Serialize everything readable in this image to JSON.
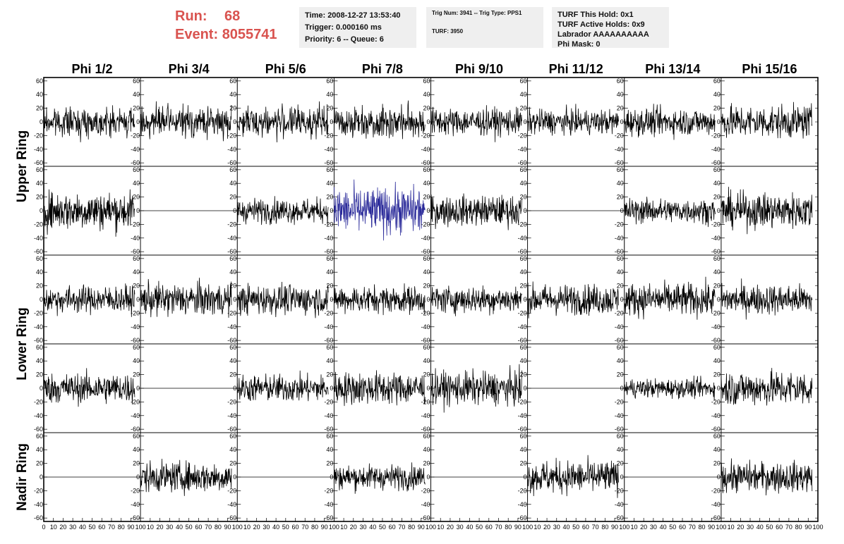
{
  "header": {
    "run_label": "Run:",
    "run_value": "68",
    "event_label": "Event:",
    "event_value": "8055741"
  },
  "info_time": {
    "time": "Time: 2008-12-27 13:53:40",
    "trigger": "Trigger: 0.000160 ms",
    "priority": "Priority: 6 -- Queue: 6"
  },
  "info_trig": {
    "trig": "Trig Num: 3941 -- Trig Type: PPS1",
    "turf": "TURF: 3950"
  },
  "info_turf": {
    "this_hold": "TURF This Hold: 0x1",
    "active_holds": "TURF Active Holds: 0x9",
    "labrador": "Labrador AAAAAAAAAA",
    "phi_mask": "Phi Mask: 0"
  },
  "colors": {
    "trace": "#000000",
    "highlight_trace": "#2b2b9a",
    "frame": "#000000",
    "run_text": "#d9534f",
    "info_bg": "#efefef"
  },
  "chart_data": {
    "type": "line",
    "columns": [
      "Phi 1/2",
      "Phi 3/4",
      "Phi 5/6",
      "Phi 7/8",
      "Phi 9/10",
      "Phi 11/12",
      "Phi 13/14",
      "Phi 15/16"
    ],
    "ring_labels": [
      "Upper Ring",
      "Lower Ring",
      "Nadir Ring"
    ],
    "ylim": [
      -65,
      65
    ],
    "yticks": [
      -60,
      -40,
      -20,
      0,
      20,
      40,
      60
    ],
    "xlim": [
      0,
      100
    ],
    "xticks": [
      0,
      10,
      20,
      30,
      40,
      50,
      60,
      70,
      80,
      90,
      100
    ],
    "samples_per_trace": 256,
    "x_trace_range": [
      0,
      94
    ],
    "rows": [
      {
        "ring": "Upper Ring",
        "panels": [
          {
            "column": "Phi 1/2",
            "active": true,
            "amplitude": 10
          },
          {
            "column": "Phi 3/4",
            "active": true,
            "amplitude": 11
          },
          {
            "column": "Phi 5/6",
            "active": true,
            "amplitude": 11
          },
          {
            "column": "Phi 7/8",
            "active": true,
            "amplitude": 12
          },
          {
            "column": "Phi 9/10",
            "active": true,
            "amplitude": 10
          },
          {
            "column": "Phi 11/12",
            "active": true,
            "amplitude": 9
          },
          {
            "column": "Phi 13/14",
            "active": true,
            "amplitude": 10
          },
          {
            "column": "Phi 15/16",
            "active": true,
            "amplitude": 12
          }
        ]
      },
      {
        "ring": "Upper Ring",
        "panels": [
          {
            "column": "Phi 1/2",
            "active": true,
            "amplitude": 14
          },
          {
            "column": "Phi 3/4",
            "active": false,
            "amplitude": 0
          },
          {
            "column": "Phi 5/6",
            "active": true,
            "amplitude": 9
          },
          {
            "column": "Phi 7/8",
            "active": true,
            "amplitude": 17,
            "highlight": true
          },
          {
            "column": "Phi 9/10",
            "active": true,
            "amplitude": 11
          },
          {
            "column": "Phi 11/12",
            "active": false,
            "amplitude": 0
          },
          {
            "column": "Phi 13/14",
            "active": true,
            "amplitude": 9
          },
          {
            "column": "Phi 15/16",
            "active": true,
            "amplitude": 13
          }
        ]
      },
      {
        "ring": "Lower Ring",
        "panels": [
          {
            "column": "Phi 1/2",
            "active": true,
            "amplitude": 10
          },
          {
            "column": "Phi 3/4",
            "active": true,
            "amplitude": 12
          },
          {
            "column": "Phi 5/6",
            "active": true,
            "amplitude": 11
          },
          {
            "column": "Phi 7/8",
            "active": true,
            "amplitude": 10
          },
          {
            "column": "Phi 9/10",
            "active": true,
            "amplitude": 10
          },
          {
            "column": "Phi 11/12",
            "active": true,
            "amplitude": 11
          },
          {
            "column": "Phi 13/14",
            "active": true,
            "amplitude": 12
          },
          {
            "column": "Phi 15/16",
            "active": true,
            "amplitude": 11
          }
        ]
      },
      {
        "ring": "Lower Ring",
        "panels": [
          {
            "column": "Phi 1/2",
            "active": true,
            "amplitude": 11
          },
          {
            "column": "Phi 3/4",
            "active": false,
            "amplitude": 0
          },
          {
            "column": "Phi 5/6",
            "active": true,
            "amplitude": 10
          },
          {
            "column": "Phi 7/8",
            "active": true,
            "amplitude": 12
          },
          {
            "column": "Phi 9/10",
            "active": true,
            "amplitude": 12
          },
          {
            "column": "Phi 11/12",
            "active": false,
            "amplitude": 0
          },
          {
            "column": "Phi 13/14",
            "active": true,
            "amplitude": 7
          },
          {
            "column": "Phi 15/16",
            "active": true,
            "amplitude": 13
          }
        ]
      },
      {
        "ring": "Nadir Ring",
        "panels": [
          {
            "column": "Phi 1/2",
            "active": false,
            "amplitude": 0
          },
          {
            "column": "Phi 3/4",
            "active": true,
            "amplitude": 11
          },
          {
            "column": "Phi 5/6",
            "active": false,
            "amplitude": 0
          },
          {
            "column": "Phi 7/8",
            "active": true,
            "amplitude": 9
          },
          {
            "column": "Phi 9/10",
            "active": false,
            "amplitude": 0
          },
          {
            "column": "Phi 11/12",
            "active": true,
            "amplitude": 12
          },
          {
            "column": "Phi 13/14",
            "active": false,
            "amplitude": 0
          },
          {
            "column": "Phi 15/16",
            "active": true,
            "amplitude": 11
          }
        ]
      }
    ]
  }
}
